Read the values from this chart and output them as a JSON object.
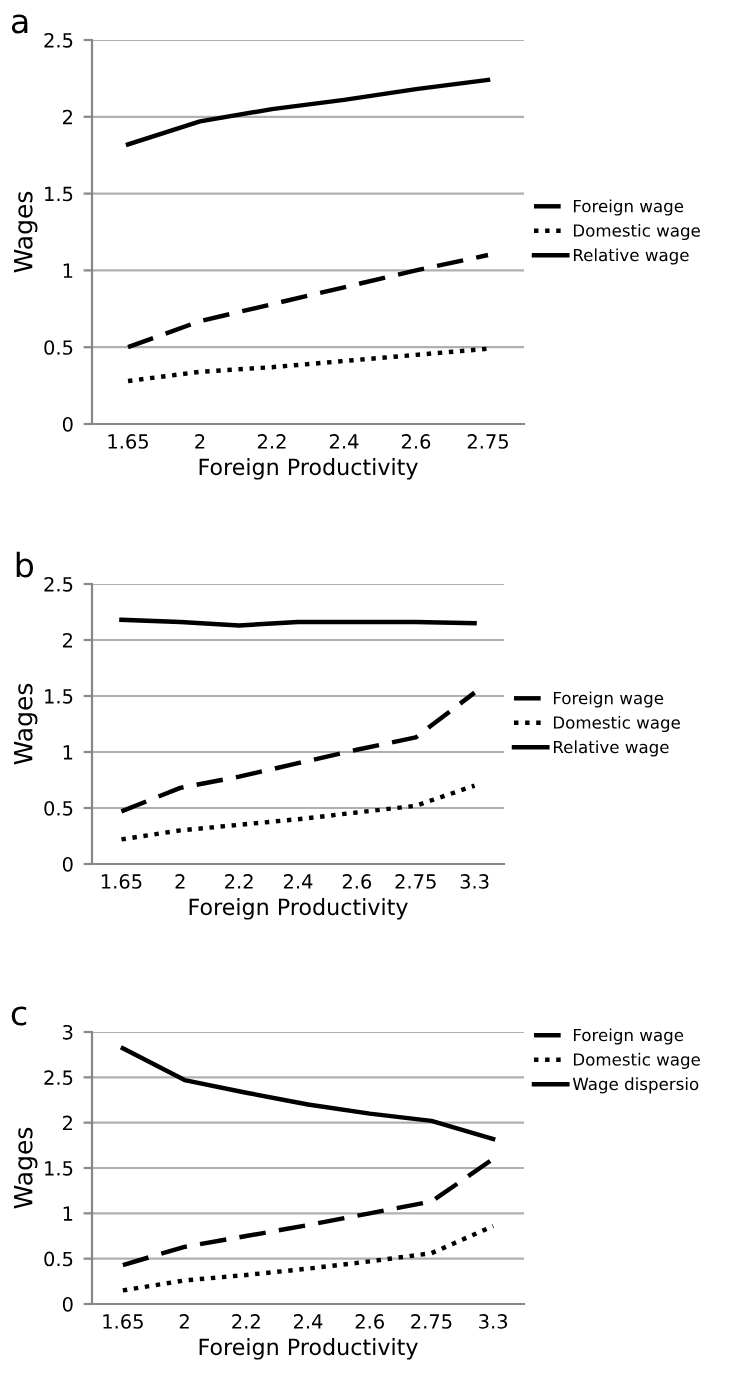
{
  "chart_data": [
    {
      "type": "line",
      "title": "a",
      "xlabel": "Foreign Productivity",
      "ylabel": "Wages",
      "categories": [
        "1.65",
        "2",
        "2.2",
        "2.4",
        "2.6",
        "2.75"
      ],
      "ylim": [
        0,
        2.5
      ],
      "yticks": [
        0,
        0.5,
        1,
        1.5,
        2,
        2.5
      ],
      "grid": "y",
      "legend": "right",
      "marker": "none",
      "series": [
        {
          "name": "Foreign wage",
          "color": "#000000",
          "line_style": "dashed",
          "values": [
            0.5,
            0.67,
            0.78,
            0.89,
            1.0,
            1.1
          ]
        },
        {
          "name": "Domestic wage",
          "color": "#000000",
          "line_style": "dotted",
          "values": [
            0.28,
            0.34,
            0.37,
            0.41,
            0.45,
            0.49
          ]
        },
        {
          "name": "Relative wage",
          "color": "#000000",
          "line_style": "solid",
          "values": [
            1.82,
            1.97,
            2.05,
            2.11,
            2.18,
            2.24
          ]
        }
      ]
    },
    {
      "type": "line",
      "title": "b",
      "xlabel": "Foreign Productivity",
      "ylabel": "Wages",
      "categories": [
        "1.65",
        "2",
        "2.2",
        "2.4",
        "2.6",
        "2.75",
        "3.3"
      ],
      "ylim": [
        0,
        2.5
      ],
      "yticks": [
        0,
        0.5,
        1,
        1.5,
        2,
        2.5
      ],
      "grid": "y",
      "legend": "right",
      "marker": "none",
      "series": [
        {
          "name": "Foreign wage",
          "color": "#000000",
          "line_style": "dashed",
          "values": [
            0.47,
            0.68,
            0.78,
            0.9,
            1.02,
            1.13,
            1.53
          ]
        },
        {
          "name": "Domestic wage",
          "color": "#000000",
          "line_style": "dotted",
          "values": [
            0.22,
            0.3,
            0.35,
            0.4,
            0.46,
            0.52,
            0.7
          ]
        },
        {
          "name": "Relative wage",
          "color": "#000000",
          "line_style": "solid",
          "values": [
            2.18,
            2.16,
            2.13,
            2.16,
            2.16,
            2.16,
            2.15
          ]
        }
      ]
    },
    {
      "type": "line",
      "title": "c",
      "xlabel": "Foreign Productivity",
      "ylabel": "Wages",
      "categories": [
        "1.65",
        "2",
        "2.2",
        "2.4",
        "2.6",
        "2.75",
        "3.3"
      ],
      "ylim": [
        0,
        3
      ],
      "yticks": [
        0,
        0.5,
        1,
        1.5,
        2,
        2.5,
        3
      ],
      "grid": "y",
      "legend": "top right",
      "marker": "none",
      "series": [
        {
          "name": "Foreign wage",
          "color": "#000000",
          "line_style": "dashed",
          "values": [
            0.43,
            0.63,
            0.75,
            0.87,
            1.0,
            1.13,
            1.6
          ]
        },
        {
          "name": "Domestic wage",
          "color": "#000000",
          "line_style": "dotted",
          "values": [
            0.15,
            0.26,
            0.32,
            0.39,
            0.47,
            0.56,
            0.86
          ]
        },
        {
          "name": "Wage dispersio",
          "color": "#000000",
          "line_style": "solid",
          "values": [
            2.82,
            2.47,
            2.33,
            2.2,
            2.1,
            2.02,
            1.82
          ]
        }
      ]
    }
  ]
}
